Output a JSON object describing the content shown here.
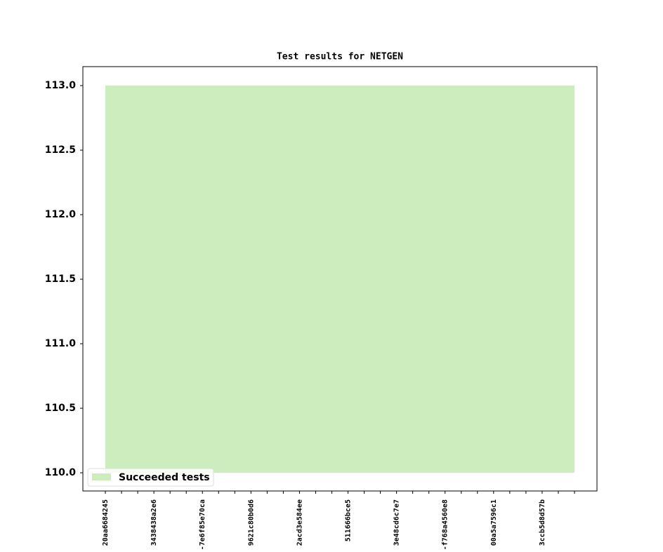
{
  "chart_data": {
    "type": "area",
    "title": "Test results for NETGEN",
    "categories": [
      "20aa6684245",
      null,
      null,
      "3438438a2e6",
      null,
      null,
      "-7e6f85e70ca",
      null,
      null,
      "9621c80b0d6",
      null,
      null,
      "2acd3e584ee",
      null,
      null,
      "511666bce5",
      null,
      null,
      "3e48cd6c7e7",
      null,
      null,
      "-f768a4560e8",
      null,
      null,
      "00a5a7596c1",
      null,
      null,
      "3ccb5d8d57b",
      null,
      null
    ],
    "series": [
      {
        "name": "Succeeded tests",
        "color": "#ceedbf",
        "base": 110,
        "values": [
          113,
          113,
          113,
          113,
          113,
          113,
          113,
          113,
          113,
          113,
          113,
          113,
          113,
          113,
          113,
          113,
          113,
          113,
          113,
          113,
          113,
          113,
          113,
          113,
          113,
          113,
          113,
          113,
          113,
          113
        ]
      }
    ],
    "ylim": [
      109.859,
      113.147
    ],
    "yticks": [
      {
        "value": 110,
        "label": "110.0"
      },
      {
        "value": 110.5,
        "label": "110.5"
      },
      {
        "value": 111,
        "label": "111.0"
      },
      {
        "value": 111.5,
        "label": "111.5"
      },
      {
        "value": 112,
        "label": "112.0"
      },
      {
        "value": 112.5,
        "label": "112.5"
      },
      {
        "value": 113,
        "label": "113.0"
      }
    ],
    "legend": "lower left"
  }
}
